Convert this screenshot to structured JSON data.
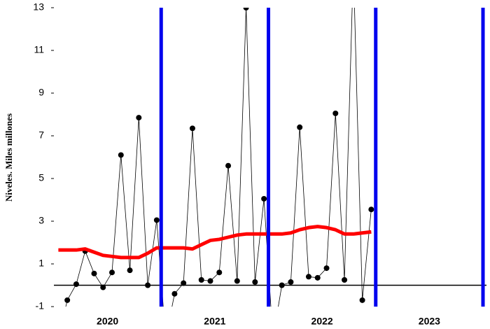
{
  "chart_data": {
    "type": "line",
    "y_label": "Niveles. Miles millones",
    "x": [
      0,
      1,
      2,
      3,
      4,
      5,
      6,
      7,
      8,
      9,
      10,
      11,
      12,
      13,
      14,
      15,
      16,
      17,
      18,
      19,
      20,
      21,
      22,
      23,
      24,
      25,
      26,
      27,
      28,
      29,
      30,
      31,
      32,
      33,
      34,
      35
    ],
    "xlim": [
      -0.5,
      47.5
    ],
    "x_groups": [
      "2020",
      "2021",
      "2022",
      "2023"
    ],
    "series": [
      {
        "color": "#000000",
        "markers": true,
        "values": [
          -2.5,
          -0.7,
          0.05,
          1.6,
          0.55,
          -0.1,
          0.6,
          6.1,
          0.7,
          7.85,
          0.0,
          3.05,
          -2.5,
          -0.4,
          0.1,
          7.35,
          0.25,
          0.2,
          0.6,
          5.6,
          0.2,
          13.0,
          0.15,
          4.05,
          -2.5,
          0.0,
          0.15,
          7.4,
          0.4,
          0.35,
          0.8,
          8.05,
          0.25,
          15,
          -0.7,
          3.55
        ]
      },
      {
        "color": "#ff0000",
        "markers": false,
        "values": [
          1.65,
          1.65,
          1.65,
          1.7,
          1.55,
          1.4,
          1.35,
          1.3,
          1.3,
          1.3,
          1.5,
          1.75,
          1.75,
          1.75,
          1.75,
          1.7,
          1.9,
          2.1,
          2.15,
          2.25,
          2.35,
          2.4,
          2.4,
          2.4,
          2.4,
          2.4,
          2.45,
          2.6,
          2.7,
          2.75,
          2.7,
          2.6,
          2.4,
          2.4,
          2.45,
          2.5
        ]
      }
    ],
    "ylim": [
      -1,
      13
    ],
    "yticks": [
      -1,
      1,
      3,
      5,
      7,
      9,
      11,
      13
    ],
    "reference_line": 0,
    "separator_color": "#0000ee"
  }
}
